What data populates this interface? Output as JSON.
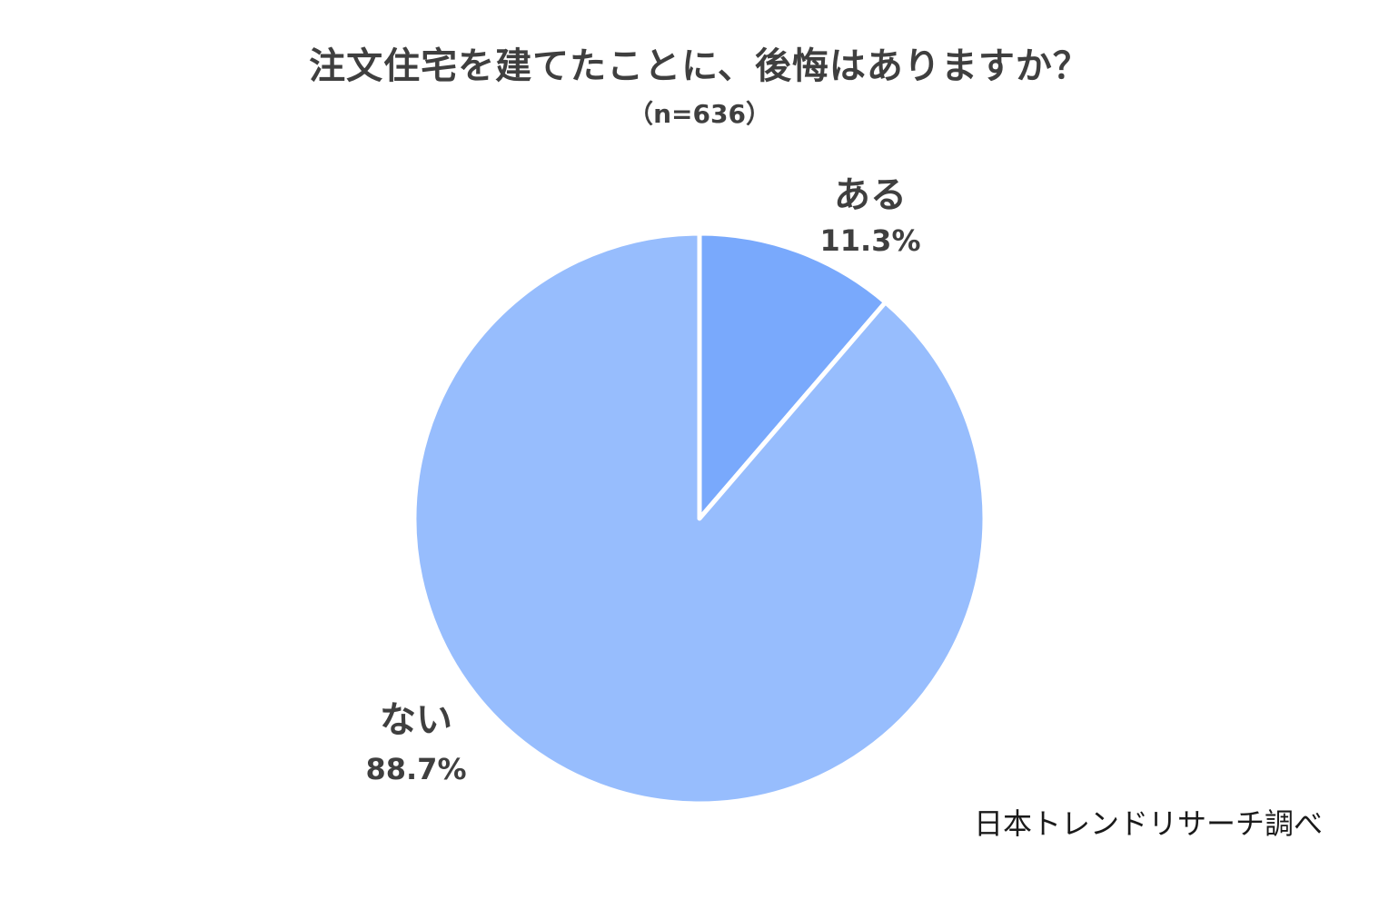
{
  "chart_data": {
    "type": "pie",
    "title": "注文住宅を建てたことに、後悔はありますか？",
    "subtitle": "（n=636）",
    "slices": [
      {
        "label": "ある",
        "value": 11.3,
        "value_label": "11.3%",
        "color": "#79a9fc"
      },
      {
        "label": "ない",
        "value": 88.7,
        "value_label": "88.7%",
        "color": "#97bdfd"
      }
    ],
    "start_angle": "12 o'clock, clockwise"
  },
  "source": "日本トレンドリサーチ調べ"
}
